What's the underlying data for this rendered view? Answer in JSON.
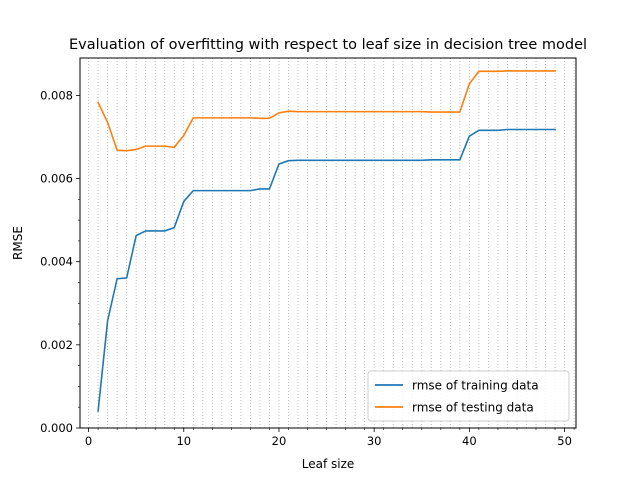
{
  "chart_data": {
    "type": "line",
    "title": "Evaluation of overfitting with respect to leaf size in decision tree model",
    "xlabel": "Leaf size",
    "ylabel": "RMSE",
    "xlim": [
      -0.9,
      51.2
    ],
    "ylim": [
      0.0,
      0.0089
    ],
    "xticks": [
      0,
      10,
      20,
      30,
      40,
      50
    ],
    "xtick_labels": [
      "0",
      "10",
      "20",
      "30",
      "40",
      "50"
    ],
    "yticks": [
      0.0,
      0.002,
      0.004,
      0.006,
      0.008
    ],
    "ytick_labels": [
      "0.000",
      "0.002",
      "0.004",
      "0.006",
      "0.008"
    ],
    "grid": "vertical dotted at every integer leaf size",
    "legend_position": "lower-right",
    "x": [
      1,
      2,
      3,
      4,
      5,
      6,
      7,
      8,
      9,
      10,
      11,
      12,
      13,
      14,
      15,
      16,
      17,
      18,
      19,
      20,
      21,
      22,
      23,
      24,
      25,
      26,
      27,
      28,
      29,
      30,
      31,
      32,
      33,
      34,
      35,
      36,
      37,
      38,
      39,
      40,
      41,
      42,
      43,
      44,
      45,
      46,
      47,
      48,
      49
    ],
    "series": [
      {
        "name": "rmse of training data",
        "color": "#1f77b4",
        "values": [
          0.00041,
          0.00258,
          0.00359,
          0.00361,
          0.00463,
          0.00474,
          0.00474,
          0.00474,
          0.00482,
          0.00545,
          0.00571,
          0.00571,
          0.00571,
          0.00571,
          0.00571,
          0.00571,
          0.00571,
          0.00575,
          0.00575,
          0.00635,
          0.00643,
          0.00644,
          0.00644,
          0.00644,
          0.00644,
          0.00644,
          0.00644,
          0.00644,
          0.00644,
          0.00644,
          0.00644,
          0.00644,
          0.00644,
          0.00644,
          0.00644,
          0.00645,
          0.00645,
          0.00645,
          0.00645,
          0.00702,
          0.00716,
          0.00716,
          0.00716,
          0.00718,
          0.00718,
          0.00718,
          0.00718,
          0.00718,
          0.00718
        ]
      },
      {
        "name": "rmse of testing data",
        "color": "#ff7f0e",
        "values": [
          0.00783,
          0.00735,
          0.00668,
          0.00667,
          0.0067,
          0.00678,
          0.00678,
          0.00678,
          0.00675,
          0.00704,
          0.00746,
          0.00746,
          0.00746,
          0.00746,
          0.00746,
          0.00746,
          0.00746,
          0.00745,
          0.00745,
          0.00758,
          0.00762,
          0.00761,
          0.00761,
          0.00761,
          0.00761,
          0.00761,
          0.00761,
          0.00761,
          0.00761,
          0.00761,
          0.00761,
          0.00761,
          0.00761,
          0.00761,
          0.00761,
          0.0076,
          0.0076,
          0.0076,
          0.0076,
          0.00828,
          0.00858,
          0.00858,
          0.00858,
          0.00859,
          0.00859,
          0.00859,
          0.00859,
          0.00859,
          0.00859
        ]
      }
    ]
  }
}
